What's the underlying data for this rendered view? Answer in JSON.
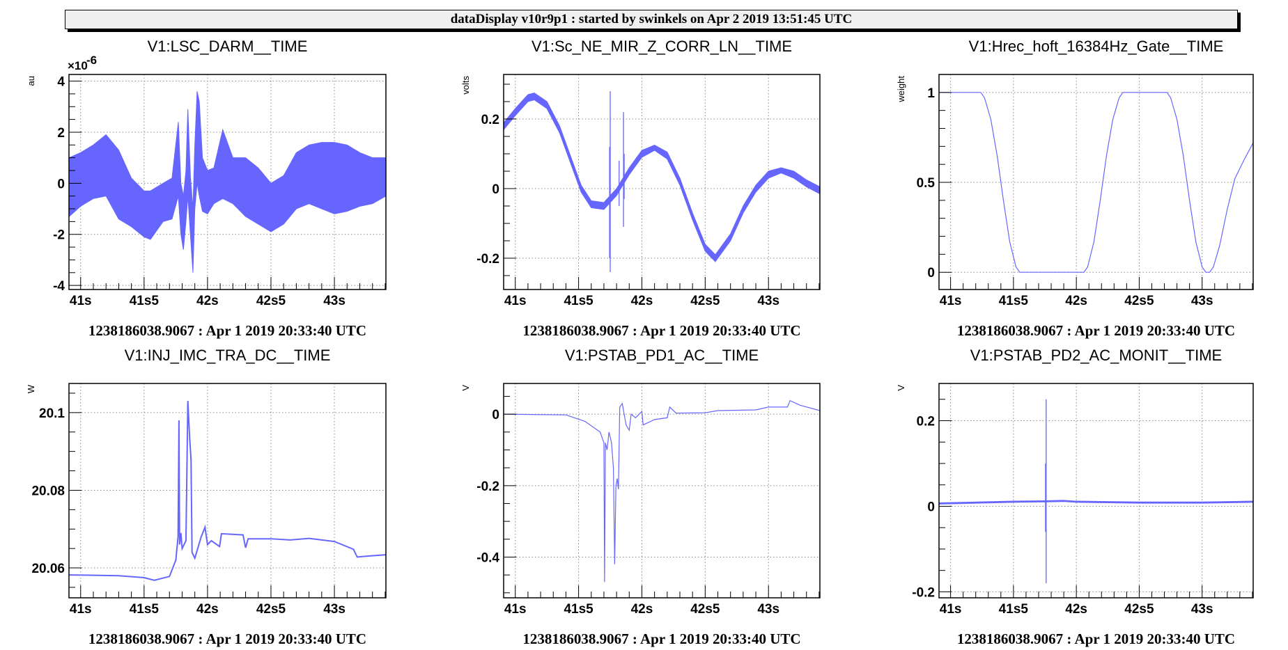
{
  "header": {
    "title": "dataDisplay v10r9p1 : started by swinkels on Apr  2 2019 13:51:45 UTC"
  },
  "colors": {
    "trace": "#6666ff",
    "grid": "#888888",
    "frame": "#000000"
  },
  "chart_data": [
    {
      "type": "area",
      "title": "V1:LSC_DARM__TIME",
      "ylabel": "au",
      "exponent_base": "×10",
      "exponent_power": "-6",
      "xlim": [
        40.908,
        43.406
      ],
      "ylim": [
        -4.16,
        4.26
      ],
      "yscale_factor": 1e-06,
      "xticks": [
        41,
        41.5,
        42,
        42.5,
        43
      ],
      "xtick_labels": [
        "41s",
        "41s5",
        "42s",
        "42s5",
        "43s"
      ],
      "yticks": [
        -4,
        -2,
        0,
        2,
        4
      ],
      "ytick_labels": [
        "-4",
        "-2",
        "0",
        "2",
        "4"
      ],
      "yminor": 0.5,
      "band": [
        [
          40.91,
          -1.3,
          1.0
        ],
        [
          41.0,
          -0.9,
          1.2
        ],
        [
          41.1,
          -0.6,
          1.5
        ],
        [
          41.2,
          -0.5,
          1.9
        ],
        [
          41.3,
          -1.4,
          1.3
        ],
        [
          41.4,
          -1.7,
          0.2
        ],
        [
          41.5,
          -2.1,
          -0.3
        ],
        [
          41.55,
          -2.2,
          -0.3
        ],
        [
          41.65,
          -1.5,
          0.0
        ],
        [
          41.72,
          -1.4,
          0.2
        ],
        [
          41.77,
          -0.5,
          2.4
        ],
        [
          41.79,
          -2.0,
          0.0
        ],
        [
          41.81,
          -2.6,
          -0.5
        ],
        [
          41.83,
          -1.5,
          0.5
        ],
        [
          41.845,
          -0.5,
          2.9
        ],
        [
          41.865,
          -2.0,
          0.3
        ],
        [
          41.885,
          -3.5,
          -1.0
        ],
        [
          41.9,
          -1.0,
          1.5
        ],
        [
          41.918,
          0.0,
          3.6
        ],
        [
          41.935,
          -0.5,
          3.2
        ],
        [
          41.96,
          -1.1,
          1.0
        ],
        [
          42.0,
          -1.2,
          0.5
        ],
        [
          42.05,
          -0.8,
          0.6
        ],
        [
          42.12,
          -0.6,
          2.1
        ],
        [
          42.2,
          -0.8,
          1.0
        ],
        [
          42.3,
          -1.3,
          1.0
        ],
        [
          42.4,
          -1.6,
          0.6
        ],
        [
          42.5,
          -1.9,
          0.0
        ],
        [
          42.6,
          -1.6,
          0.3
        ],
        [
          42.7,
          -1.0,
          1.2
        ],
        [
          42.8,
          -0.8,
          1.5
        ],
        [
          42.9,
          -1.0,
          1.6
        ],
        [
          43.0,
          -1.2,
          1.6
        ],
        [
          43.1,
          -1.1,
          1.5
        ],
        [
          43.2,
          -0.9,
          1.2
        ],
        [
          43.3,
          -0.8,
          1.0
        ],
        [
          43.406,
          -0.5,
          1.0
        ]
      ],
      "timestamp": "1238186038.9067 : Apr  1 2019 20:33:40 UTC"
    },
    {
      "type": "area",
      "title": "V1:Sc_NE_MIR_Z_CORR_LN__TIME",
      "ylabel": "volts",
      "xlim": [
        40.908,
        43.406
      ],
      "ylim": [
        -0.29,
        0.328
      ],
      "xticks": [
        41,
        41.5,
        42,
        42.5,
        43
      ],
      "xtick_labels": [
        "41s",
        "41s5",
        "42s",
        "42s5",
        "43s"
      ],
      "yticks": [
        -0.2,
        0,
        0.2
      ],
      "ytick_labels": [
        "-0.2",
        "0",
        "0.2"
      ],
      "yminor": 0.05,
      "band": [
        [
          40.91,
          0.17,
          0.19
        ],
        [
          41.0,
          0.21,
          0.23
        ],
        [
          41.1,
          0.25,
          0.27
        ],
        [
          41.15,
          0.255,
          0.275
        ],
        [
          41.25,
          0.23,
          0.25
        ],
        [
          41.35,
          0.16,
          0.18
        ],
        [
          41.45,
          0.06,
          0.08
        ],
        [
          41.52,
          -0.01,
          0.01
        ],
        [
          41.6,
          -0.055,
          -0.035
        ],
        [
          41.7,
          -0.06,
          -0.04
        ],
        [
          41.8,
          -0.02,
          0.0
        ],
        [
          41.9,
          0.04,
          0.06
        ],
        [
          42.0,
          0.09,
          0.11
        ],
        [
          42.1,
          0.11,
          0.125
        ],
        [
          42.2,
          0.085,
          0.105
        ],
        [
          42.3,
          0.01,
          0.03
        ],
        [
          42.4,
          -0.09,
          -0.07
        ],
        [
          42.5,
          -0.18,
          -0.16
        ],
        [
          42.58,
          -0.21,
          -0.19
        ],
        [
          42.7,
          -0.15,
          -0.13
        ],
        [
          42.8,
          -0.07,
          -0.05
        ],
        [
          42.9,
          -0.01,
          0.01
        ],
        [
          43.0,
          0.03,
          0.05
        ],
        [
          43.1,
          0.045,
          0.06
        ],
        [
          43.2,
          0.03,
          0.05
        ],
        [
          43.3,
          0.005,
          0.025
        ],
        [
          43.406,
          -0.015,
          0.005
        ]
      ],
      "spikes": [
        [
          41.75,
          -0.24,
          0.28
        ],
        [
          41.745,
          -0.2,
          0.12
        ],
        [
          41.82,
          -0.05,
          0.08
        ],
        [
          41.855,
          -0.11,
          0.22
        ],
        [
          41.86,
          -0.03,
          0.1
        ]
      ],
      "timestamp": "1238186038.9067 : Apr  1 2019 20:33:40 UTC"
    },
    {
      "type": "line",
      "title": "V1:Hrec_hoft_16384Hz_Gate__TIME",
      "ylabel": "weight",
      "xlim": [
        40.908,
        43.406
      ],
      "ylim": [
        -0.096,
        1.1
      ],
      "xticks": [
        41,
        41.5,
        42,
        42.5,
        43
      ],
      "xtick_labels": [
        "41s",
        "41s5",
        "42s",
        "42s5",
        "43s"
      ],
      "yticks": [
        0,
        0.5,
        1
      ],
      "ytick_labels": [
        "0",
        "0.5",
        "1"
      ],
      "yminor": 0.1,
      "points": [
        [
          40.91,
          1
        ],
        [
          41.24,
          1
        ],
        [
          41.27,
          0.97
        ],
        [
          41.32,
          0.85
        ],
        [
          41.37,
          0.65
        ],
        [
          41.42,
          0.4
        ],
        [
          41.47,
          0.17
        ],
        [
          41.52,
          0.03
        ],
        [
          41.55,
          0
        ],
        [
          42.06,
          0
        ],
        [
          42.09,
          0.03
        ],
        [
          42.14,
          0.17
        ],
        [
          42.19,
          0.4
        ],
        [
          42.24,
          0.65
        ],
        [
          42.29,
          0.85
        ],
        [
          42.34,
          0.97
        ],
        [
          42.37,
          1
        ],
        [
          42.72,
          1
        ],
        [
          42.75,
          0.97
        ],
        [
          42.8,
          0.85
        ],
        [
          42.85,
          0.65
        ],
        [
          42.9,
          0.4
        ],
        [
          42.95,
          0.17
        ],
        [
          43.0,
          0.03
        ],
        [
          43.03,
          0
        ],
        [
          43.06,
          0
        ],
        [
          43.09,
          0.03
        ],
        [
          43.14,
          0.15
        ],
        [
          43.2,
          0.35
        ],
        [
          43.26,
          0.52
        ],
        [
          43.33,
          0.62
        ],
        [
          43.406,
          0.72
        ]
      ],
      "timestamp": "1238186038.9067 : Apr  1 2019 20:33:40 UTC"
    },
    {
      "type": "line",
      "title": "V1:INJ_IMC_TRA_DC__TIME",
      "ylabel": "W",
      "xlim": [
        40.908,
        43.406
      ],
      "ylim": [
        20.0523,
        20.1075
      ],
      "xticks": [
        41,
        41.5,
        42,
        42.5,
        43
      ],
      "xtick_labels": [
        "41s",
        "41s5",
        "42s",
        "42s5",
        "43s"
      ],
      "yticks": [
        20.06,
        20.08,
        20.1
      ],
      "ytick_labels": [
        "20.06",
        "20.08",
        "20.1"
      ],
      "yminor": 0.005,
      "points": [
        [
          40.91,
          20.0582
        ],
        [
          41.3,
          20.058
        ],
        [
          41.5,
          20.0575
        ],
        [
          41.58,
          20.0568
        ],
        [
          41.7,
          20.0578
        ],
        [
          41.75,
          20.062
        ],
        [
          41.768,
          20.068
        ],
        [
          41.775,
          20.098
        ],
        [
          41.78,
          20.066
        ],
        [
          41.79,
          20.069
        ],
        [
          41.8,
          20.065
        ],
        [
          41.83,
          20.067
        ],
        [
          41.845,
          20.103
        ],
        [
          41.86,
          20.093
        ],
        [
          41.87,
          20.088
        ],
        [
          41.878,
          20.064
        ],
        [
          41.9,
          20.0625
        ],
        [
          41.95,
          20.068
        ],
        [
          41.98,
          20.0705
        ],
        [
          42.0,
          20.066
        ],
        [
          42.03,
          20.067
        ],
        [
          42.095,
          20.0655
        ],
        [
          42.11,
          20.0688
        ],
        [
          42.28,
          20.0685
        ],
        [
          42.3,
          20.0652
        ],
        [
          42.32,
          20.0675
        ],
        [
          42.5,
          20.0675
        ],
        [
          42.65,
          20.0672
        ],
        [
          42.8,
          20.0676
        ],
        [
          43.0,
          20.0668
        ],
        [
          43.15,
          20.0648
        ],
        [
          43.18,
          20.0628
        ],
        [
          43.25,
          20.063
        ],
        [
          43.406,
          20.0634
        ]
      ],
      "timestamp": "1238186038.9067 : Apr  1 2019 20:33:40 UTC"
    },
    {
      "type": "line",
      "title": "V1:PSTAB_PD1_AC__TIME",
      "ylabel": "V",
      "xlim": [
        40.908,
        43.406
      ],
      "ylim": [
        -0.514,
        0.086
      ],
      "xticks": [
        41,
        41.5,
        42,
        42.5,
        43
      ],
      "xtick_labels": [
        "41s",
        "41s5",
        "42s",
        "42s5",
        "43s"
      ],
      "yticks": [
        -0.4,
        -0.2,
        0
      ],
      "ytick_labels": [
        "-0.4",
        "-0.2",
        "0"
      ],
      "yminor": 0.05,
      "points": [
        [
          40.91,
          0
        ],
        [
          41.4,
          -0.002
        ],
        [
          41.55,
          -0.02
        ],
        [
          41.67,
          -0.05
        ],
        [
          41.7,
          -0.08
        ],
        [
          41.705,
          -0.47
        ],
        [
          41.712,
          -0.08
        ],
        [
          41.725,
          -0.1
        ],
        [
          41.74,
          -0.05
        ],
        [
          41.76,
          -0.08
        ],
        [
          41.775,
          -0.15
        ],
        [
          41.785,
          -0.42
        ],
        [
          41.795,
          -0.2
        ],
        [
          41.805,
          -0.18
        ],
        [
          41.815,
          -0.21
        ],
        [
          41.825,
          0.02
        ],
        [
          41.845,
          0.03
        ],
        [
          41.875,
          -0.03
        ],
        [
          41.9,
          -0.045
        ],
        [
          41.915,
          0.0
        ],
        [
          41.95,
          -0.01
        ],
        [
          42.0,
          0.008
        ],
        [
          42.01,
          -0.03
        ],
        [
          42.1,
          -0.015
        ],
        [
          42.2,
          -0.01
        ],
        [
          42.22,
          0.02
        ],
        [
          42.27,
          0.003
        ],
        [
          42.5,
          0.004
        ],
        [
          42.6,
          0.01
        ],
        [
          42.9,
          0.012
        ],
        [
          43.0,
          0.02
        ],
        [
          43.15,
          0.02
        ],
        [
          43.17,
          0.038
        ],
        [
          43.25,
          0.025
        ],
        [
          43.406,
          0.01
        ]
      ],
      "timestamp": "1238186038.9067 : Apr  1 2019 20:33:40 UTC"
    },
    {
      "type": "line",
      "title": "V1:PSTAB_PD2_AC_MONIT__TIME",
      "ylabel": "V",
      "xlim": [
        40.908,
        43.406
      ],
      "ylim": [
        -0.214,
        0.287
      ],
      "xticks": [
        41,
        41.5,
        42,
        42.5,
        43
      ],
      "xtick_labels": [
        "41s",
        "41s5",
        "42s",
        "42s5",
        "43s"
      ],
      "yticks": [
        -0.2,
        0,
        0.2
      ],
      "ytick_labels": [
        "-0.2",
        "0",
        "0.2"
      ],
      "yminor": 0.05,
      "band": [
        [
          40.91,
          0.005,
          0.008
        ],
        [
          41.5,
          0.009,
          0.012
        ],
        [
          41.75,
          0.01,
          0.013
        ],
        [
          41.9,
          0.011,
          0.014
        ],
        [
          42.0,
          0.009,
          0.012
        ],
        [
          42.5,
          0.007,
          0.01
        ],
        [
          43.0,
          0.007,
          0.01
        ],
        [
          43.406,
          0.009,
          0.012
        ]
      ],
      "spikes": [
        [
          41.76,
          -0.18,
          0.25
        ],
        [
          41.755,
          -0.06,
          0.1
        ]
      ],
      "timestamp": "1238186038.9067 : Apr  1 2019 20:33:40 UTC"
    }
  ]
}
